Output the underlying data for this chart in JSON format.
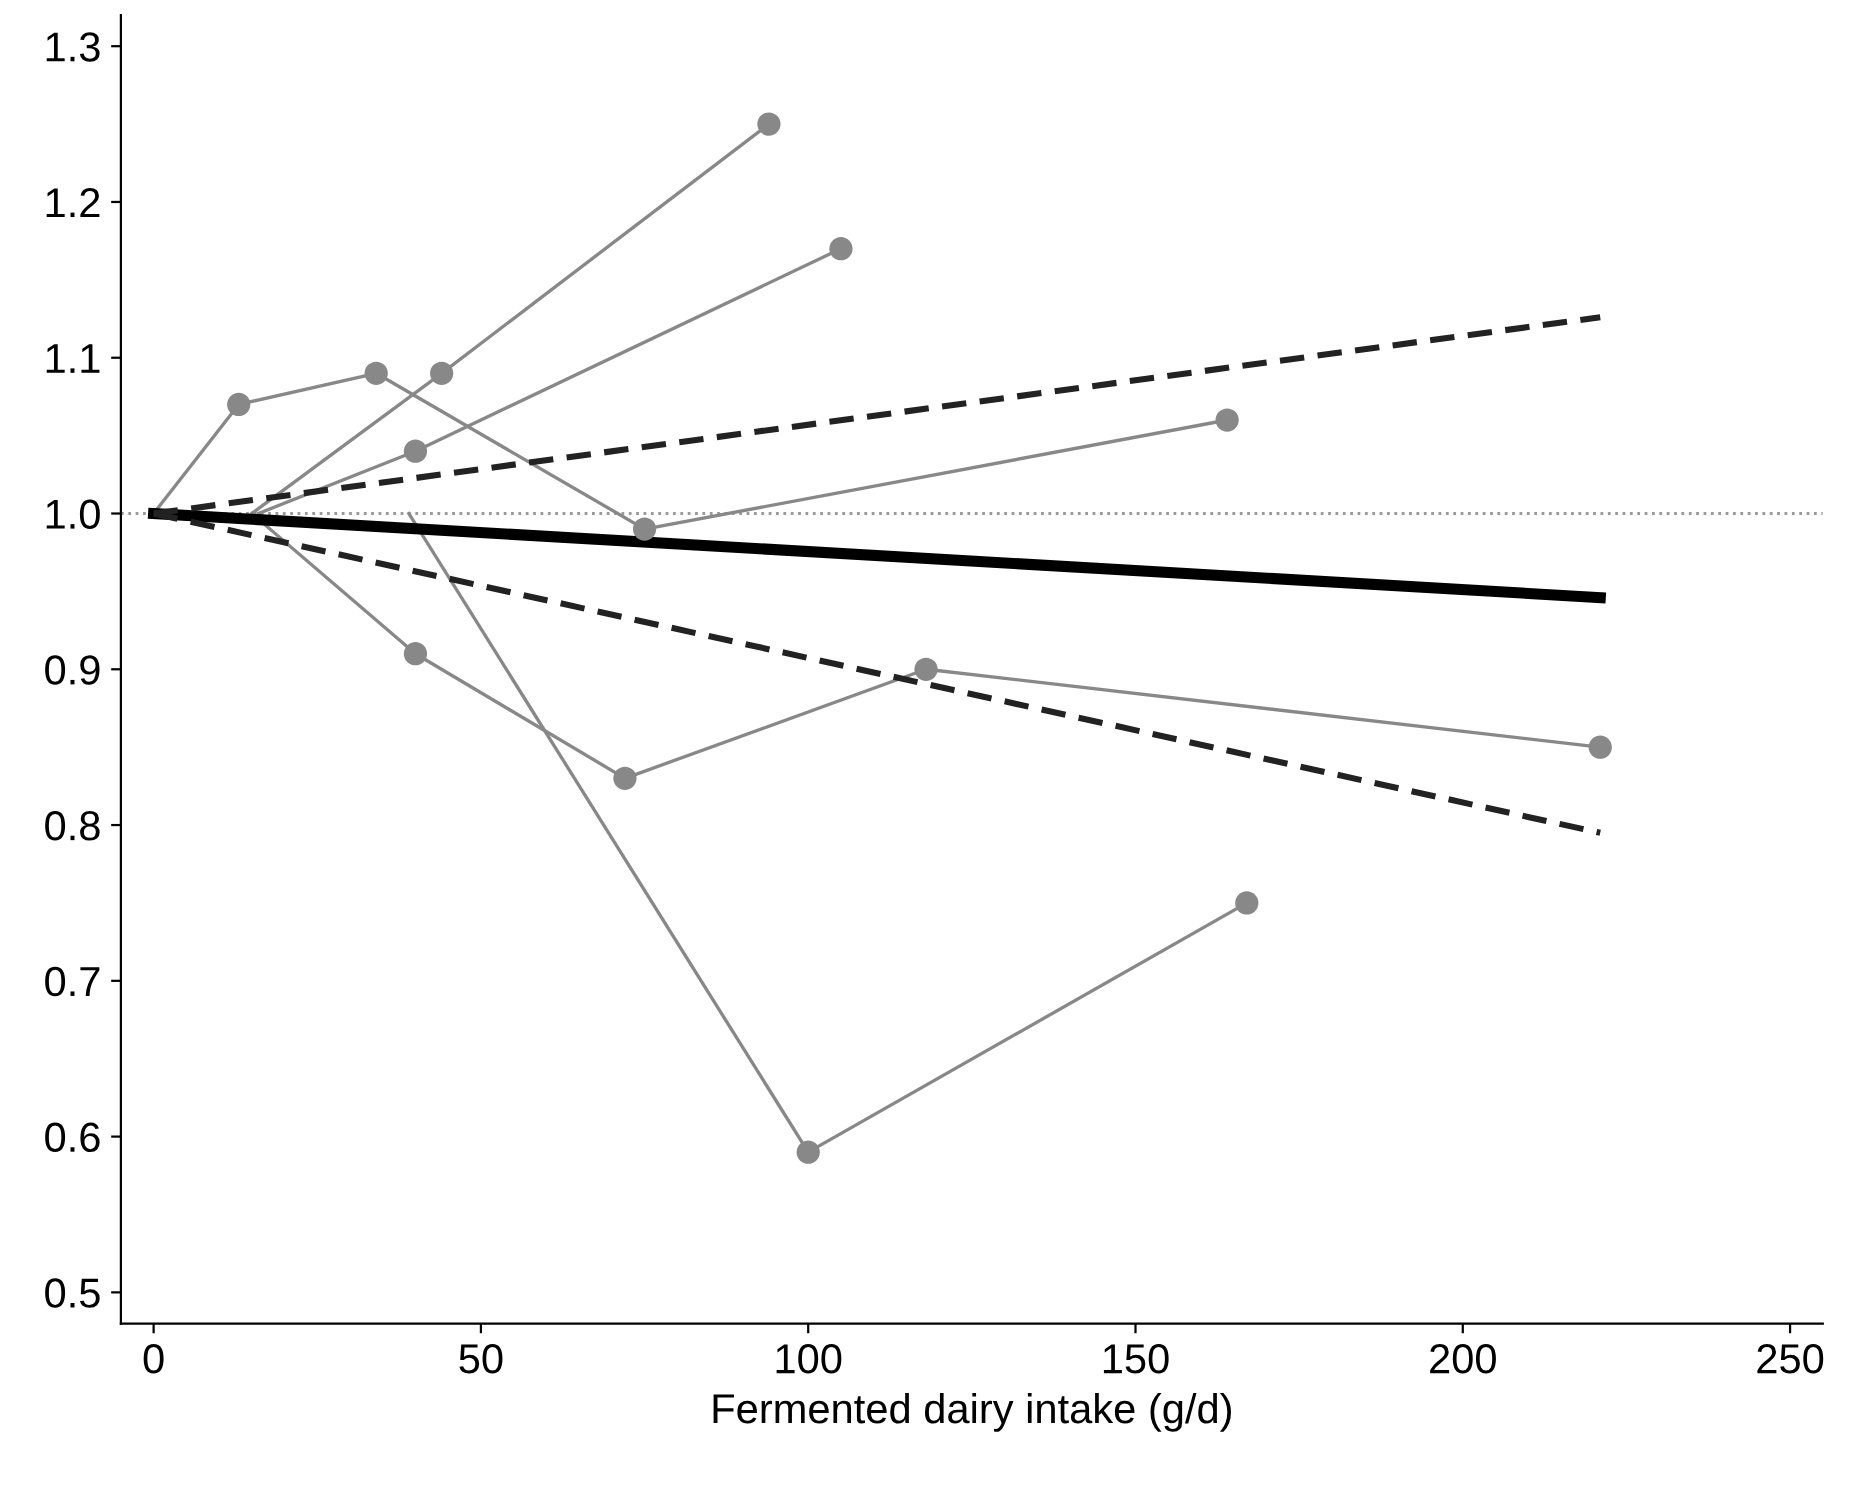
{
  "chart_data": {
    "type": "line",
    "xlabel": "Fermented dairy intake (g/d)",
    "xlim": [
      -5,
      255
    ],
    "xticks": [
      0,
      50,
      100,
      150,
      200,
      250
    ],
    "ylim": [
      0.48,
      1.32
    ],
    "yticks": [
      0.5,
      0.6,
      0.7,
      0.8,
      0.9,
      {
        "value": 1.0,
        "label": "1.0"
      },
      1.1,
      1.2,
      1.3
    ],
    "grid": false,
    "legend": false,
    "marker": "circle",
    "ref_lines": [
      {
        "axis": "y",
        "value": 1.0,
        "color": "#999999",
        "line_style": "dotted"
      }
    ],
    "series": [
      {
        "color": "#888888",
        "x": [
          0,
          13,
          34,
          75,
          164
        ],
        "values": [
          1.0,
          1.07,
          1.09,
          0.99,
          1.06
        ]
      },
      {
        "color": "#888888",
        "x": [
          15,
          44,
          94
        ],
        "values": [
          1.0,
          1.09,
          1.25
        ]
      },
      {
        "color": "#888888",
        "x": [
          16,
          40,
          105
        ],
        "values": [
          1.0,
          1.04,
          1.17
        ]
      },
      {
        "color": "#888888",
        "x": [
          15,
          40,
          72,
          118,
          221
        ],
        "values": [
          1.0,
          0.91,
          0.83,
          0.9,
          0.85
        ]
      },
      {
        "color": "#888888",
        "x": [
          39,
          100,
          167
        ],
        "values": [
          1.0,
          0.59,
          0.75
        ]
      },
      {
        "color": "#000000",
        "x": [
          0,
          221
        ],
        "values": [
          1.0,
          0.946
        ],
        "marker": "none",
        "line_style": "solid"
      },
      {
        "color": "#222222",
        "x": [
          0,
          221
        ],
        "values": [
          1.0,
          1.126
        ],
        "marker": "none",
        "line_style": "dashed"
      },
      {
        "color": "#222222",
        "x": [
          0,
          221
        ],
        "values": [
          1.0,
          0.795
        ],
        "marker": "none",
        "line_style": "dashed"
      }
    ]
  }
}
